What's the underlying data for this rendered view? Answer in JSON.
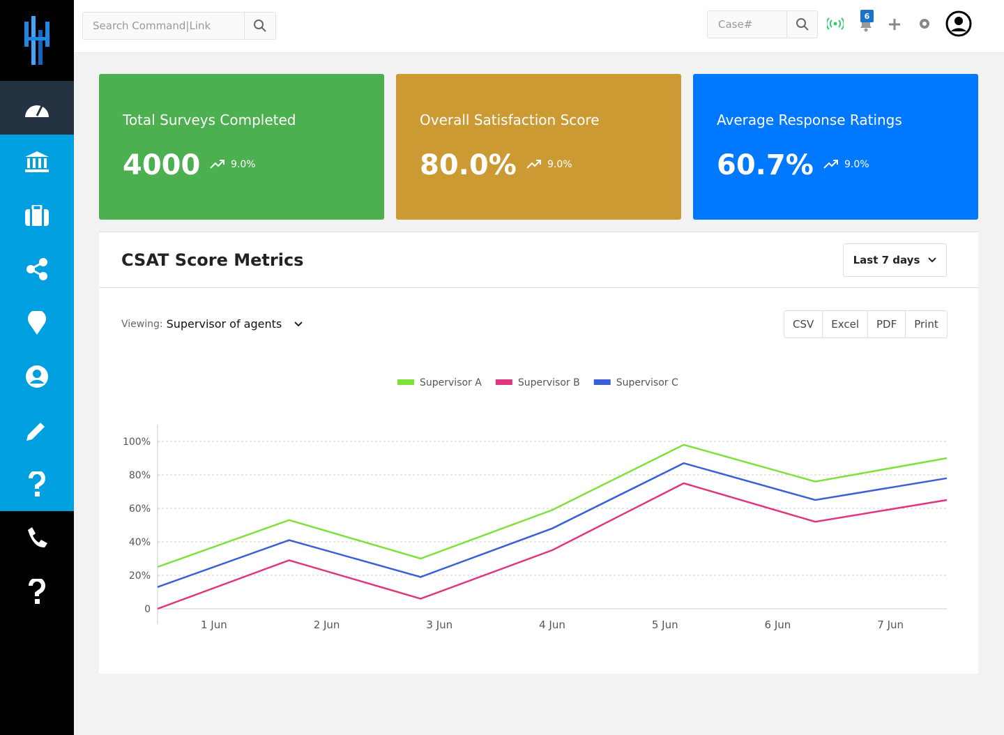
{
  "search": {
    "placeholder": "Search Command|Link"
  },
  "case_search": {
    "placeholder": "Case#"
  },
  "notifications": {
    "count": "6"
  },
  "cards": [
    {
      "title": "Total Surveys Completed",
      "value": "4000",
      "change": "9.0%",
      "color": "#4caf50"
    },
    {
      "title": "Overall Satisfaction Score",
      "value": "80.0%",
      "change": "9.0%",
      "color": "#cc9a33"
    },
    {
      "title": "Average Response Ratings",
      "value": "60.7%",
      "change": "9.0%",
      "color": "#0078ff"
    }
  ],
  "panel": {
    "title": "CSAT Score Metrics",
    "range": "Last 7 days",
    "viewing_label": "Viewing:",
    "viewing_value": "Supervisor of agents",
    "exports": [
      "CSV",
      "Excel",
      "PDF",
      "Print"
    ]
  },
  "chart_data": {
    "type": "line",
    "categories": [
      "1 Jun",
      "2 Jun",
      "3 Jun",
      "4 Jun",
      "5 Jun",
      "6 Jun",
      "7 Jun"
    ],
    "series": [
      {
        "name": "Supervisor A",
        "color": "#7ee03a",
        "values": [
          25,
          53,
          30,
          59,
          98,
          76,
          90
        ]
      },
      {
        "name": "Supervisor B",
        "color": "#e0357f",
        "values": [
          0,
          29,
          6,
          35,
          75,
          52,
          65
        ]
      },
      {
        "name": "Supervisor C",
        "color": "#3a5fd9",
        "values": [
          13,
          41,
          19,
          48,
          87,
          65,
          78
        ]
      }
    ],
    "ylim": [
      0,
      110
    ],
    "yticks": [
      0,
      {
        "value": 20,
        "label": "20%"
      },
      {
        "value": 40,
        "label": "40%"
      },
      {
        "value": 60,
        "label": "60%"
      },
      {
        "value": 80,
        "label": "80%"
      },
      {
        "value": 100,
        "label": "100%"
      }
    ],
    "grid": true
  }
}
